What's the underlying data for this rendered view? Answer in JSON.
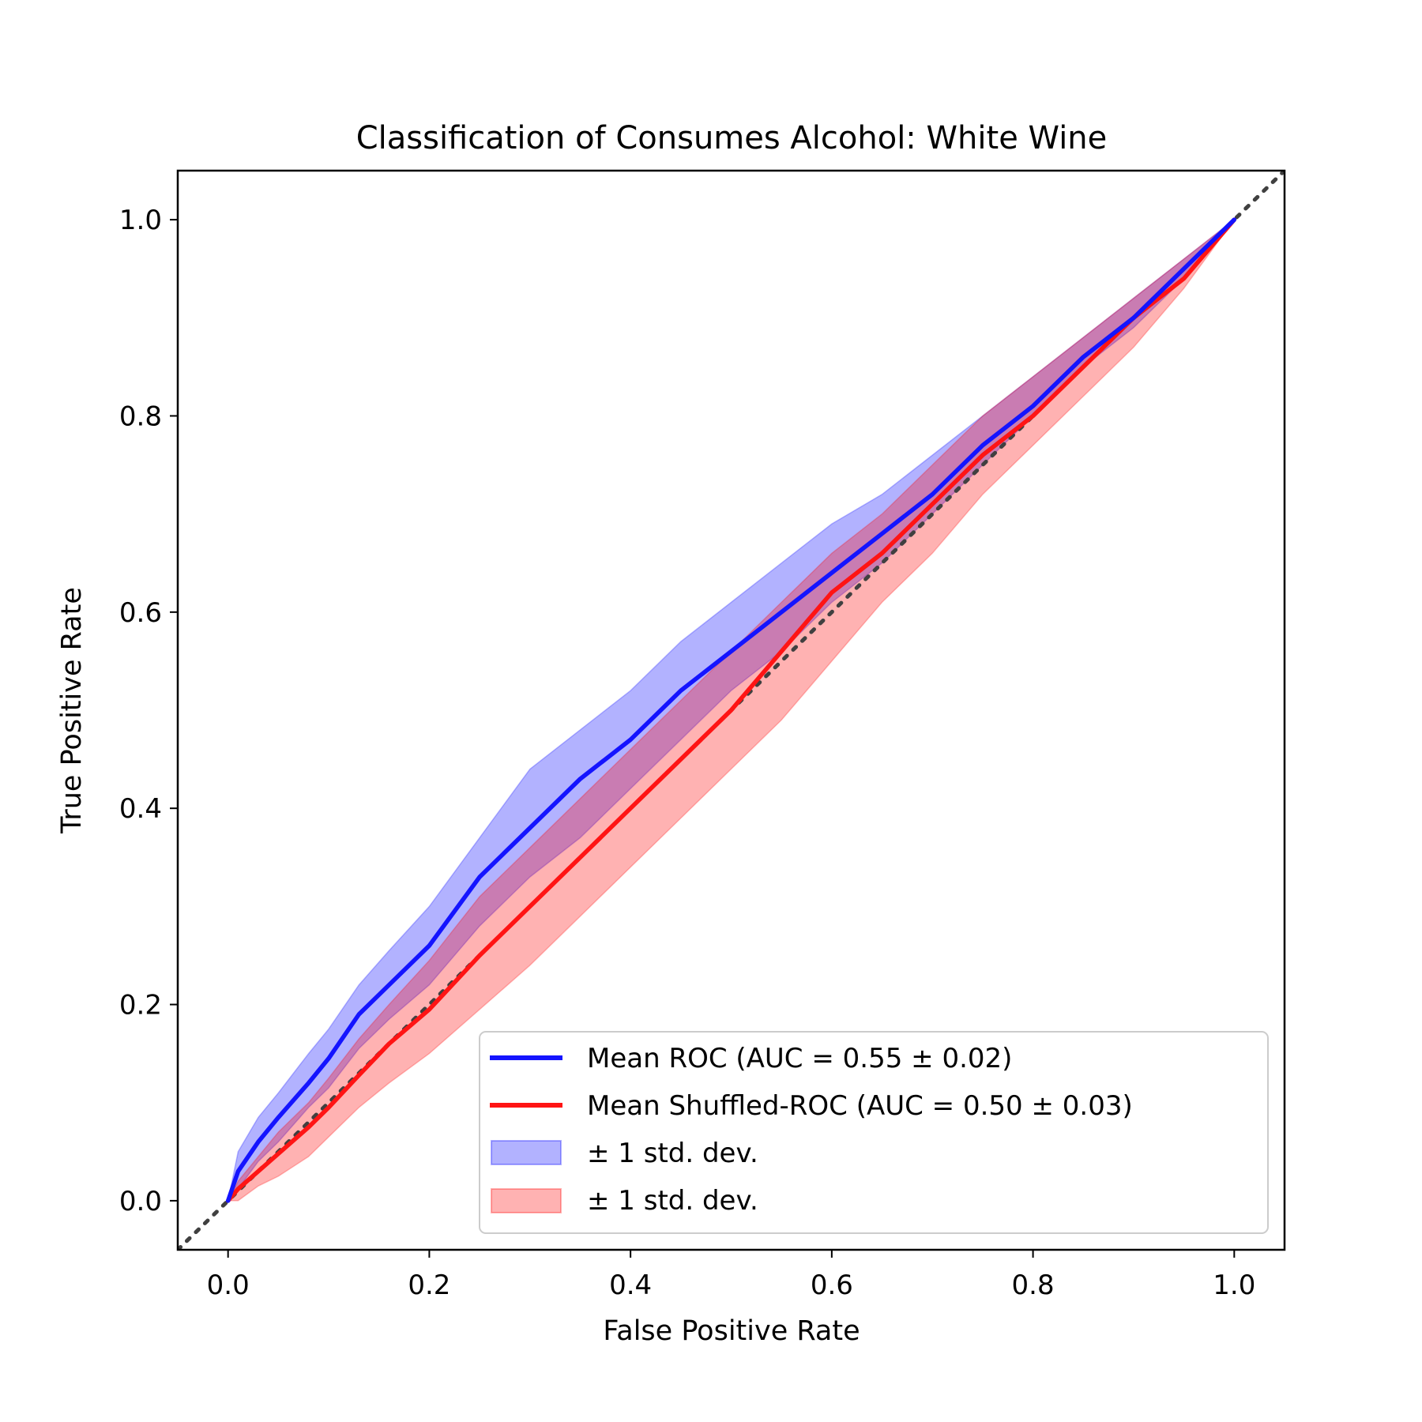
{
  "chart_data": {
    "type": "line",
    "title": "Classification of Consumes Alcohol: White Wine",
    "xlabel": "False Positive Rate",
    "ylabel": "True Positive Rate",
    "xlim": [
      -0.05,
      1.05
    ],
    "ylim": [
      -0.05,
      1.05
    ],
    "x_ticks": [
      "0.0",
      "0.2",
      "0.4",
      "0.6",
      "0.8",
      "1.0"
    ],
    "y_ticks": [
      "0.0",
      "0.2",
      "0.4",
      "0.6",
      "0.8",
      "1.0"
    ],
    "grid": false,
    "legend_position": "lower-right",
    "x": [
      0.0,
      0.01,
      0.03,
      0.05,
      0.08,
      0.1,
      0.13,
      0.16,
      0.2,
      0.25,
      0.3,
      0.35,
      0.4,
      0.45,
      0.5,
      0.55,
      0.6,
      0.65,
      0.7,
      0.75,
      0.8,
      0.85,
      0.9,
      0.95,
      1.0
    ],
    "series": [
      {
        "name": "Mean ROC (AUC = 0.55 ± 0.02)",
        "color": "#1414ff",
        "values": [
          0.0,
          0.03,
          0.06,
          0.085,
          0.12,
          0.145,
          0.19,
          0.22,
          0.26,
          0.33,
          0.38,
          0.43,
          0.47,
          0.52,
          0.56,
          0.6,
          0.64,
          0.68,
          0.72,
          0.77,
          0.81,
          0.86,
          0.9,
          0.95,
          1.0
        ]
      },
      {
        "name": "Mean Shuffled-ROC (AUC = 0.50 ± 0.03)",
        "color": "#ff1414",
        "values": [
          0.0,
          0.012,
          0.03,
          0.048,
          0.075,
          0.095,
          0.128,
          0.16,
          0.195,
          0.25,
          0.3,
          0.35,
          0.4,
          0.45,
          0.5,
          0.56,
          0.62,
          0.66,
          0.71,
          0.76,
          0.8,
          0.85,
          0.9,
          0.94,
          1.0
        ]
      }
    ],
    "bands": [
      {
        "name": "± 1 std. dev.",
        "color": "#0000ff",
        "lower": [
          0.0,
          0.012,
          0.04,
          0.06,
          0.095,
          0.115,
          0.155,
          0.185,
          0.22,
          0.28,
          0.33,
          0.37,
          0.42,
          0.47,
          0.52,
          0.56,
          0.61,
          0.65,
          0.7,
          0.75,
          0.8,
          0.85,
          0.89,
          0.94,
          1.0
        ],
        "upper": [
          0.0,
          0.05,
          0.085,
          0.11,
          0.15,
          0.175,
          0.22,
          0.255,
          0.3,
          0.37,
          0.44,
          0.48,
          0.52,
          0.57,
          0.61,
          0.65,
          0.69,
          0.72,
          0.76,
          0.8,
          0.84,
          0.88,
          0.92,
          0.96,
          1.0
        ]
      },
      {
        "name": "± 1 std. dev.",
        "color": "#ff0000",
        "lower": [
          0.0,
          0.0,
          0.015,
          0.025,
          0.045,
          0.065,
          0.095,
          0.12,
          0.15,
          0.195,
          0.24,
          0.29,
          0.34,
          0.39,
          0.44,
          0.49,
          0.55,
          0.61,
          0.66,
          0.72,
          0.77,
          0.82,
          0.87,
          0.93,
          1.0
        ],
        "upper": [
          0.0,
          0.02,
          0.045,
          0.07,
          0.1,
          0.125,
          0.165,
          0.2,
          0.245,
          0.31,
          0.36,
          0.41,
          0.46,
          0.51,
          0.56,
          0.61,
          0.66,
          0.7,
          0.75,
          0.8,
          0.84,
          0.88,
          0.92,
          0.96,
          1.0
        ]
      }
    ],
    "chance_line": {
      "style": "dotted",
      "color": "#404040"
    }
  }
}
